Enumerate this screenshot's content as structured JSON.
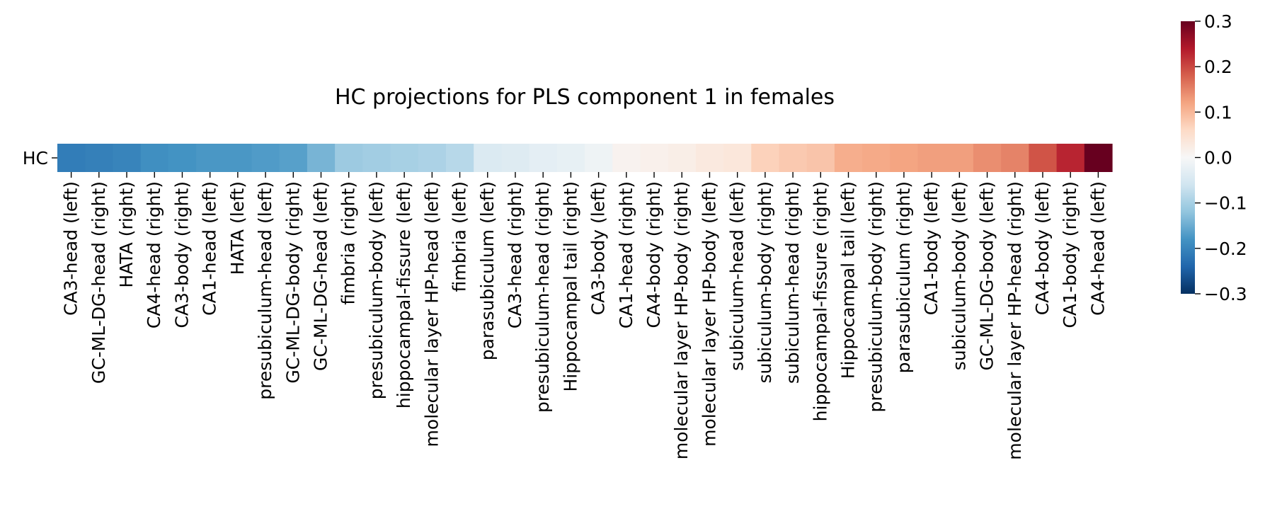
{
  "chart_data": {
    "type": "heatmap",
    "title": "HC projections for PLS component 1 in females",
    "xlabel": "",
    "ylabel": "",
    "rows": [
      "HC"
    ],
    "columns": [
      "CA3-head (left)",
      "GC-ML-DG-head (right)",
      "HATA (right)",
      "CA4-head (right)",
      "CA3-body (right)",
      "CA1-head (left)",
      "HATA (left)",
      "presubiculum-head (left)",
      "GC-ML-DG-body (right)",
      "GC-ML-DG-head (left)",
      "fimbria (right)",
      "presubiculum-body (left)",
      "hippocampal-fissure (left)",
      "molecular layer HP-head (left)",
      "fimbria (left)",
      "parasubiculum (left)",
      "CA3-head (right)",
      "presubiculum-head (right)",
      "Hippocampal tail (right)",
      "CA3-body (left)",
      "CA1-head (right)",
      "CA4-body (right)",
      "molecular layer HP-body (right)",
      "molecular layer HP-body (left)",
      "subiculum-head (left)",
      "subiculum-body (right)",
      "subiculum-head (right)",
      "hippocampal-fissure (right)",
      "Hippocampal tail (left)",
      "presubiculum-body (right)",
      "parasubiculum (right)",
      "CA1-body (left)",
      "subiculum-body (left)",
      "GC-ML-DG-body (left)",
      "molecular layer HP-head (right)",
      "CA4-body (left)",
      "CA1-body (right)",
      "CA4-head (left)"
    ],
    "values": [
      [
        -0.21,
        -0.205,
        -0.2,
        -0.185,
        -0.18,
        -0.175,
        -0.175,
        -0.17,
        -0.165,
        -0.14,
        -0.11,
        -0.105,
        -0.1,
        -0.095,
        -0.085,
        -0.045,
        -0.04,
        -0.03,
        -0.025,
        -0.015,
        0.01,
        0.015,
        0.02,
        0.03,
        0.035,
        0.07,
        0.08,
        0.085,
        0.11,
        0.115,
        0.12,
        0.125,
        0.125,
        0.14,
        0.15,
        0.19,
        0.23,
        0.3
      ]
    ],
    "colorbar": {
      "colormap": "RdBu_r",
      "range": [
        -0.3,
        0.3
      ],
      "ticks": [
        0.3,
        0.2,
        0.1,
        0.0,
        -0.1,
        -0.2,
        -0.3
      ],
      "tick_labels": [
        "0.3",
        "0.2",
        "0.1",
        "0.0",
        "−0.1",
        "−0.2",
        "−0.3"
      ],
      "position": "right"
    }
  }
}
